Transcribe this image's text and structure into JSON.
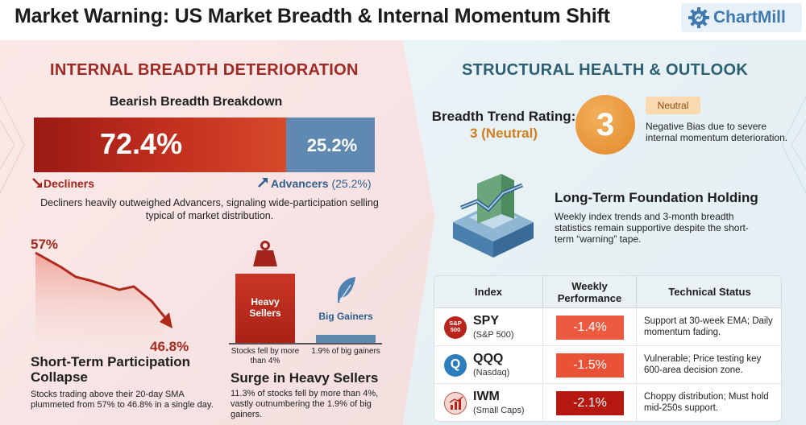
{
  "header": {
    "title": "Market Warning: US Market Breadth & Internal Momentum Shift",
    "logo_text": "ChartMill",
    "logo_icon": "gear-icon"
  },
  "left": {
    "section_title": "INTERNAL BREADTH DETERIORATION",
    "breadth": {
      "title": "Bearish Breadth Breakdown",
      "decliners_value_label": "72.4%",
      "advancers_value_label": "25.2%",
      "decliners_pct": 72.4,
      "advancers_pct": 25.2,
      "decliners_label": "Decliners",
      "advancers_label": "Advancers",
      "advancers_label_extra": " (25.2%)",
      "note": "Decliners heavily outweighed Advancers, signaling wide-participation selling typical of market distribution.",
      "decliners_color": "#b8281b",
      "advancers_color": "#5f89b0"
    },
    "participation": {
      "start_label": "57%",
      "end_label": "46.8%",
      "start_value": 57,
      "end_value": 46.8,
      "title": "Short-Term Participation Collapse",
      "text": "Stocks trading above their 20-day SMA plummeted from 57% to 46.8% in a single day."
    },
    "sellers": {
      "heavy_label": "Heavy Sellers",
      "gainers_label": "Big Gainers",
      "heavy_pct": 11.3,
      "gainers_pct": 1.9,
      "heavy_caption": "Stocks fell by more than 4%",
      "gainers_caption": "1.9% of big gainers",
      "title": "Surge in Heavy Sellers",
      "text": "11.3% of stocks fell by more than 4%, vastly outnumbering the 1.9% of big gainers.",
      "heavy_icon": "weight-icon",
      "gainers_icon": "feather-icon"
    }
  },
  "right": {
    "section_title": "STRUCTURAL HEALTH & OUTLOOK",
    "rating": {
      "label": "Breadth Trend Rating:",
      "value_text": "3 (Neutral)",
      "number": "3",
      "badge": "Neutral",
      "text": "Negative Bias due to severe internal momentum deterioration.",
      "accent_color": "#e89438"
    },
    "foundation": {
      "title": "Long-Term Foundation Holding",
      "text": "Weekly index trends and 3-month breadth statistics remain supportive despite the short-term “warning” tape.",
      "icon": "foundation-chart-icon"
    },
    "table": {
      "headers": [
        "Index",
        "Weekly Performance",
        "Technical Status"
      ],
      "rows": [
        {
          "icon_text": "S&P 500",
          "icon": "sp500-icon",
          "name": "SPY",
          "sub": "(S&P 500)",
          "performance": "-1.4%",
          "status": "Support at 30-week EMA; Daily momentum fading."
        },
        {
          "icon_text": "Q",
          "icon": "nasdaq-icon",
          "name": "QQQ",
          "sub": "(Nasdaq)",
          "performance": "-1.5%",
          "status": "Vulnerable; Price testing key 600-area decision zone."
        },
        {
          "icon_text": "",
          "icon": "smallcap-chart-icon",
          "name": "IWM",
          "sub": "(Small Caps)",
          "performance": "-2.1%",
          "status": "Choppy distribution; Must hold mid-250s support."
        }
      ]
    }
  }
}
